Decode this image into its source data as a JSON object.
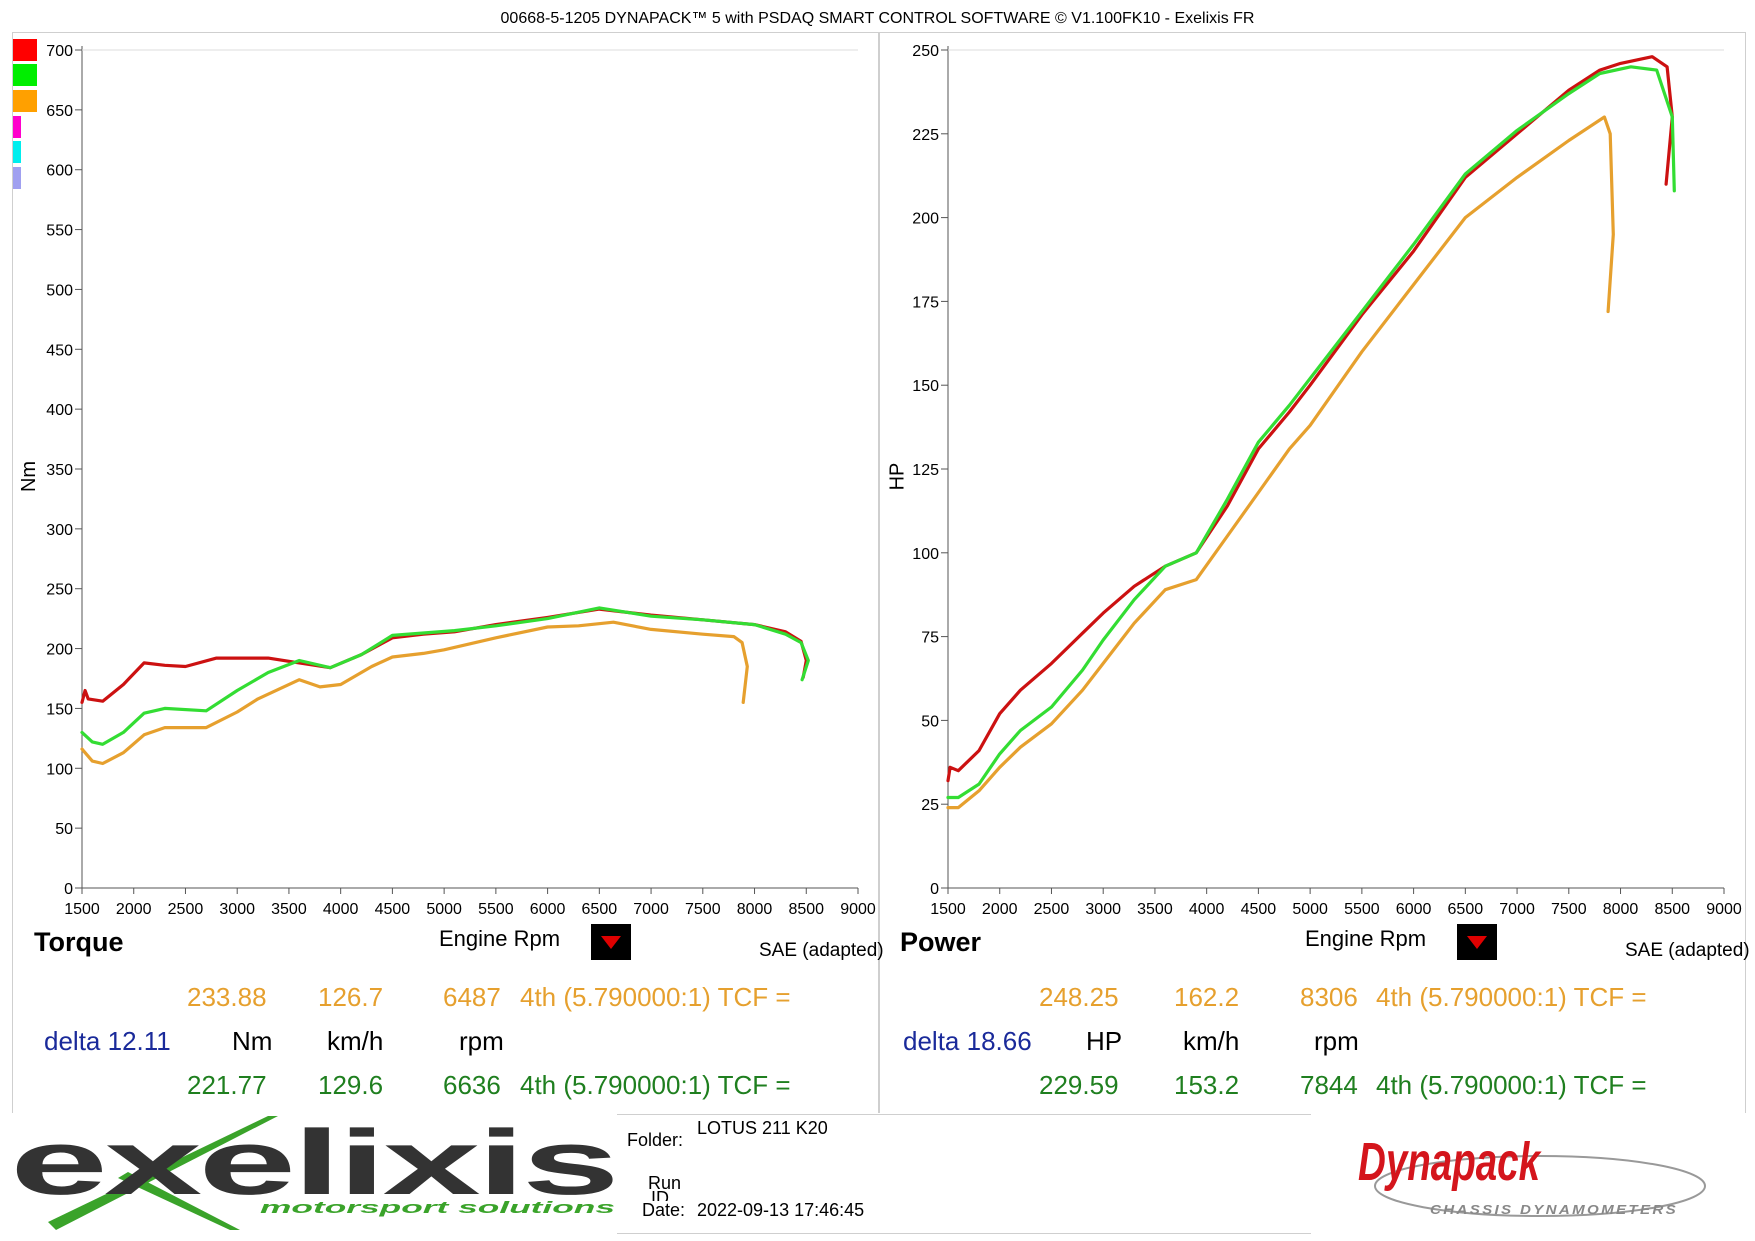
{
  "header": {
    "title": "00668-5-1205 DYNAPACK™ 5 with PSDAQ SMART CONTROL SOFTWARE © V1.100FK10 - Exelixis FR"
  },
  "legend": {
    "colors": [
      "#ff0000",
      "#00ee00",
      "#ffa000",
      "#ff00cc",
      "#00eeee",
      "#a0a0f0"
    ]
  },
  "chart_data": [
    {
      "type": "line",
      "name": "torque",
      "title": "Torque",
      "xlabel": "Engine Rpm",
      "ylabel": "Nm",
      "note": "SAE (adapted)",
      "xlim": [
        1500,
        9000
      ],
      "ylim": [
        0,
        700
      ],
      "x_ticks": [
        1500,
        2000,
        2500,
        3000,
        3500,
        4000,
        4500,
        5000,
        5500,
        6000,
        6500,
        7000,
        7500,
        8000,
        8500,
        9000
      ],
      "y_ticks": [
        0,
        50,
        100,
        150,
        200,
        250,
        300,
        350,
        400,
        450,
        500,
        550,
        600,
        650,
        700
      ],
      "series": [
        {
          "color": "#cc1111",
          "points": [
            [
              1500,
              155
            ],
            [
              1530,
              165
            ],
            [
              1560,
              158
            ],
            [
              1700,
              156
            ],
            [
              1900,
              170
            ],
            [
              2100,
              188
            ],
            [
              2300,
              186
            ],
            [
              2500,
              185
            ],
            [
              2800,
              192
            ],
            [
              3000,
              192
            ],
            [
              3300,
              192
            ],
            [
              3600,
              188
            ],
            [
              3900,
              184
            ],
            [
              4200,
              195
            ],
            [
              4500,
              209
            ],
            [
              4800,
              212
            ],
            [
              5100,
              214
            ],
            [
              5500,
              220
            ],
            [
              6000,
              226
            ],
            [
              6500,
              233
            ],
            [
              7000,
              228
            ],
            [
              7500,
              224
            ],
            [
              8000,
              220
            ],
            [
              8300,
              214
            ],
            [
              8450,
              206
            ],
            [
              8500,
              190
            ],
            [
              8470,
              176
            ]
          ]
        },
        {
          "color": "#33dd33",
          "points": [
            [
              1500,
              130
            ],
            [
              1600,
              122
            ],
            [
              1700,
              120
            ],
            [
              1900,
              130
            ],
            [
              2100,
              146
            ],
            [
              2300,
              150
            ],
            [
              2700,
              148
            ],
            [
              3000,
              165
            ],
            [
              3300,
              180
            ],
            [
              3600,
              190
            ],
            [
              3900,
              184
            ],
            [
              4200,
              195
            ],
            [
              4500,
              211
            ],
            [
              4800,
              213
            ],
            [
              5100,
              215
            ],
            [
              5500,
              219
            ],
            [
              6000,
              225
            ],
            [
              6500,
              234
            ],
            [
              7000,
              227
            ],
            [
              7500,
              224
            ],
            [
              8000,
              220
            ],
            [
              8300,
              212
            ],
            [
              8450,
              205
            ],
            [
              8520,
              190
            ],
            [
              8460,
              174
            ]
          ]
        },
        {
          "color": "#e6a02e",
          "points": [
            [
              1500,
              116
            ],
            [
              1600,
              106
            ],
            [
              1700,
              104
            ],
            [
              1900,
              113
            ],
            [
              2100,
              128
            ],
            [
              2300,
              134
            ],
            [
              2700,
              134
            ],
            [
              3000,
              147
            ],
            [
              3200,
              158
            ],
            [
              3400,
              166
            ],
            [
              3600,
              174
            ],
            [
              3800,
              168
            ],
            [
              4000,
              170
            ],
            [
              4300,
              185
            ],
            [
              4500,
              193
            ],
            [
              4800,
              196
            ],
            [
              5000,
              199
            ],
            [
              5500,
              209
            ],
            [
              6000,
              218
            ],
            [
              6300,
              219
            ],
            [
              6636,
              222
            ],
            [
              7000,
              216
            ],
            [
              7500,
              212
            ],
            [
              7800,
              210
            ],
            [
              7880,
              205
            ],
            [
              7930,
              185
            ],
            [
              7890,
              155
            ]
          ]
        }
      ]
    },
    {
      "type": "line",
      "name": "power",
      "title": "Power",
      "xlabel": "Engine Rpm",
      "ylabel": "HP",
      "note": "SAE (adapted)",
      "xlim": [
        1500,
        9000
      ],
      "ylim": [
        0,
        250
      ],
      "x_ticks": [
        1500,
        2000,
        2500,
        3000,
        3500,
        4000,
        4500,
        5000,
        5500,
        6000,
        6500,
        7000,
        7500,
        8000,
        8500,
        9000
      ],
      "y_ticks": [
        0,
        25,
        50,
        75,
        100,
        125,
        150,
        175,
        200,
        225,
        250
      ],
      "series": [
        {
          "color": "#cc1111",
          "points": [
            [
              1500,
              32
            ],
            [
              1520,
              36
            ],
            [
              1600,
              35
            ],
            [
              1800,
              41
            ],
            [
              2000,
              52
            ],
            [
              2200,
              59
            ],
            [
              2500,
              67
            ],
            [
              2800,
              76
            ],
            [
              3000,
              82
            ],
            [
              3300,
              90
            ],
            [
              3600,
              96
            ],
            [
              3900,
              100
            ],
            [
              4200,
              114
            ],
            [
              4500,
              131
            ],
            [
              4800,
              142
            ],
            [
              5000,
              150
            ],
            [
              5500,
              171
            ],
            [
              6000,
              190
            ],
            [
              6500,
              212
            ],
            [
              7000,
              225
            ],
            [
              7500,
              238
            ],
            [
              7800,
              244
            ],
            [
              8000,
              246
            ],
            [
              8306,
              248
            ],
            [
              8450,
              245
            ],
            [
              8500,
              230
            ],
            [
              8440,
              210
            ]
          ]
        },
        {
          "color": "#33dd33",
          "points": [
            [
              1500,
              27
            ],
            [
              1600,
              27
            ],
            [
              1800,
              31
            ],
            [
              2000,
              40
            ],
            [
              2200,
              47
            ],
            [
              2500,
              54
            ],
            [
              2800,
              65
            ],
            [
              3000,
              74
            ],
            [
              3300,
              86
            ],
            [
              3600,
              96
            ],
            [
              3900,
              100
            ],
            [
              4200,
              116
            ],
            [
              4500,
              133
            ],
            [
              4800,
              144
            ],
            [
              5000,
              152
            ],
            [
              5500,
              172
            ],
            [
              6000,
              192
            ],
            [
              6500,
              213
            ],
            [
              7000,
              226
            ],
            [
              7500,
              237
            ],
            [
              7800,
              243
            ],
            [
              8100,
              245
            ],
            [
              8350,
              244
            ],
            [
              8500,
              230
            ],
            [
              8520,
              208
            ]
          ]
        },
        {
          "color": "#e6a02e",
          "points": [
            [
              1500,
              24
            ],
            [
              1600,
              24
            ],
            [
              1800,
              29
            ],
            [
              2000,
              36
            ],
            [
              2200,
              42
            ],
            [
              2500,
              49
            ],
            [
              2800,
              59
            ],
            [
              3000,
              67
            ],
            [
              3300,
              79
            ],
            [
              3600,
              89
            ],
            [
              3900,
              92
            ],
            [
              4200,
              105
            ],
            [
              4500,
              118
            ],
            [
              4800,
              131
            ],
            [
              5000,
              138
            ],
            [
              5500,
              160
            ],
            [
              6000,
              180
            ],
            [
              6500,
              200
            ],
            [
              7000,
              212
            ],
            [
              7500,
              223
            ],
            [
              7844,
              230
            ],
            [
              7900,
              225
            ],
            [
              7930,
              195
            ],
            [
              7880,
              172
            ]
          ]
        }
      ]
    }
  ],
  "readouts": {
    "torque": {
      "max_run": {
        "value": "233.88",
        "speed": "126.7",
        "rpm": "6487",
        "gear": "4th (5.790000:1) TCF ="
      },
      "delta": "delta 12.11",
      "units": {
        "value": "Nm",
        "speed": "km/h",
        "rpm": "rpm"
      },
      "ref_run": {
        "value": "221.77",
        "speed": "129.6",
        "rpm": "6636",
        "gear": "4th (5.790000:1) TCF ="
      }
    },
    "power": {
      "max_run": {
        "value": "248.25",
        "speed": "162.2",
        "rpm": "8306",
        "gear": "4th (5.790000:1) TCF ="
      },
      "delta": "delta 18.66",
      "units": {
        "value": "HP",
        "speed": "km/h",
        "rpm": "rpm"
      },
      "ref_run": {
        "value": "229.59",
        "speed": "153.2",
        "rpm": "7844",
        "gear": "4th (5.790000:1) TCF ="
      }
    }
  },
  "footer": {
    "folder_label": "Folder:",
    "folder_value": "LOTUS 211 K20",
    "run_label": "Run",
    "run_label_cut": "ID",
    "date_label": "Date:",
    "date_value": "2022-09-13 17:46:45"
  },
  "logos": {
    "exelixis_word": "exelixis",
    "exelixis_tagline": "motorsport solutions",
    "dynapack_word": "Dynapack",
    "dynapack_tagline": "CHASSIS DYNAMOMETERS"
  }
}
